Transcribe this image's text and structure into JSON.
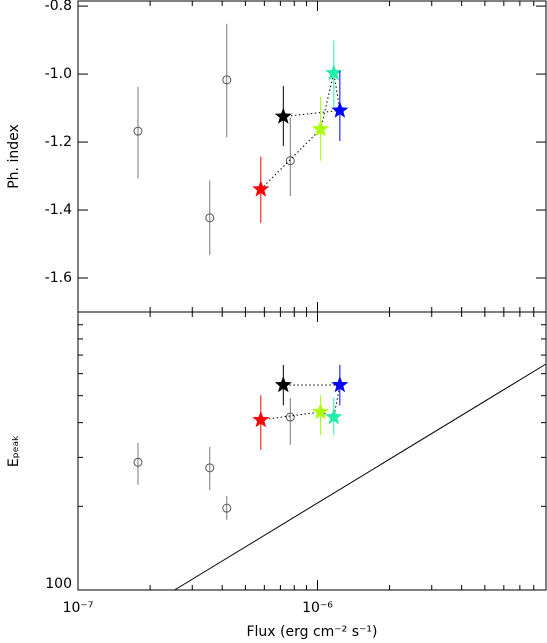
{
  "chart_data": [
    {
      "type": "scatter",
      "ylabel": "Ph. index",
      "log_x": true,
      "log_y": false,
      "xlim": [
        1e-07,
        9e-06
      ],
      "ylim": [
        -1.7,
        -0.785
      ],
      "xticks": [
        {
          "value": 1e-07,
          "label": "10⁻⁷"
        },
        {
          "value": 1e-06,
          "label": "10⁻⁶"
        }
      ],
      "yticks": [
        -1.6,
        -1.4,
        -1.2,
        {
          "value": -1.0,
          "label": "-1.0"
        },
        -0.8
      ],
      "series": [
        {
          "marker": "circle",
          "color": "#555555",
          "x": [
            1.78e-07,
            3.55e-07,
            4.18e-07,
            7.7e-07
          ],
          "values": [
            -1.168,
            -1.423,
            -1.017,
            -1.255
          ],
          "err_low": [
            -1.307,
            -1.533,
            -1.186,
            -1.359
          ],
          "err_high": [
            -1.038,
            -1.313,
            -0.852,
            -1.128
          ]
        },
        {
          "marker": "star",
          "connect": true,
          "colors": [
            "#ff0000",
            "#aaff00",
            "#22eeaa",
            "#0000ff",
            "#000000"
          ],
          "x": [
            5.8e-07,
            1.03e-06,
            1.17e-06,
            1.24e-06,
            7.2e-07
          ],
          "values": [
            -1.339,
            -1.162,
            -0.997,
            -1.107,
            -1.125
          ],
          "err_low": [
            -1.438,
            -1.255,
            -1.096,
            -1.197,
            -1.212
          ],
          "err_high": [
            -1.243,
            -1.067,
            -0.901,
            -0.99,
            -1.035
          ]
        }
      ]
    },
    {
      "type": "scatter",
      "ylabel": "Eₚₑₐₖ",
      "xlabel": "Flux (erg cm⁻² s⁻¹)",
      "log_x": true,
      "log_y": true,
      "xlim": [
        1e-07,
        9e-06
      ],
      "ylim": [
        100,
        1000
      ],
      "xticks": [
        {
          "value": 1e-07,
          "label": "10⁻⁷"
        },
        {
          "value": 1e-06,
          "label": "10⁻⁶"
        }
      ],
      "yticks": [
        100
      ],
      "series": [
        {
          "marker": "circle",
          "color": "#555555",
          "x": [
            1.78e-07,
            3.55e-07,
            4.18e-07,
            7.7e-07
          ],
          "values": [
            288,
            275,
            197,
            419
          ],
          "err_low": [
            239,
            229,
            179,
            333
          ],
          "err_high": [
            338,
            327,
            218,
            491
          ]
        },
        {
          "marker": "star",
          "connect": true,
          "colors": [
            "#ff0000",
            "#aaff00",
            "#22eeaa",
            "#0000ff",
            "#000000"
          ],
          "x": [
            5.8e-07,
            1.03e-06,
            1.17e-06,
            1.24e-06,
            7.2e-07
          ],
          "values": [
            409,
            437,
            419,
            546,
            546
          ],
          "err_low": [
            319,
            361,
            361,
            462,
            462
          ],
          "err_high": [
            502,
            502,
            491,
            645,
            645
          ]
        }
      ],
      "reference_line": {
        "x": [
          2.53e-07,
          9e-06
        ],
        "values": [
          100,
          650
        ]
      }
    }
  ]
}
